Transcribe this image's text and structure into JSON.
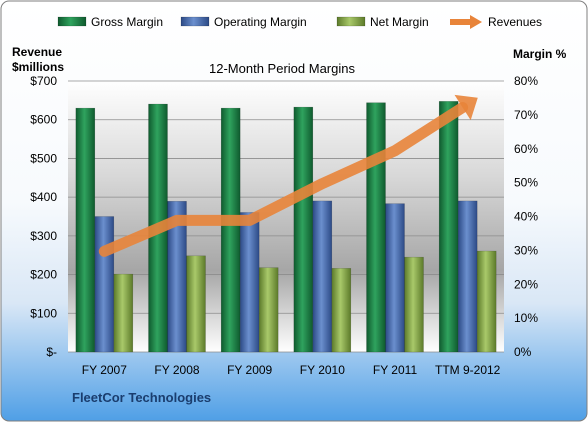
{
  "chart_data": {
    "type": "bar",
    "title": "12-Month Period Margins",
    "company": "FleetCor Technologies",
    "categories": [
      "FY 2007",
      "FY 2008",
      "FY 2009",
      "FY 2010",
      "FY 2011",
      "TTM 9-2012"
    ],
    "y_left": {
      "label_line1": "Revenue",
      "label_line2": "$millions",
      "ticks": [
        "$-",
        "$100",
        "$200",
        "$300",
        "$400",
        "$500",
        "$600",
        "$700"
      ],
      "ylim": [
        0,
        700
      ]
    },
    "y_right": {
      "label": "Margin %",
      "ticks": [
        "0%",
        "10%",
        "20%",
        "30%",
        "40%",
        "50%",
        "60%",
        "70%",
        "80%"
      ],
      "ylim": [
        0,
        80
      ]
    },
    "series": [
      {
        "name": "Gross Margin",
        "axis": "right",
        "kind": "bar",
        "color": "#1f8a4c",
        "values": [
          72.0,
          73.2,
          72.0,
          72.3,
          73.6,
          74.0
        ]
      },
      {
        "name": "Operating Margin",
        "axis": "right",
        "kind": "bar",
        "color": "#4a6fb5",
        "values": [
          40.0,
          44.5,
          41.2,
          44.6,
          43.8,
          44.6
        ]
      },
      {
        "name": "Net Margin",
        "axis": "right",
        "kind": "bar",
        "color": "#8bb04a",
        "values": [
          23.0,
          28.4,
          24.9,
          24.7,
          28.0,
          29.8
        ]
      },
      {
        "name": "Revenues",
        "axis": "left",
        "kind": "arrow-line",
        "color": "#e8843a",
        "values": [
          260,
          340,
          340,
          435,
          520,
          640
        ]
      }
    ],
    "legend_position": "top",
    "grid": true
  }
}
